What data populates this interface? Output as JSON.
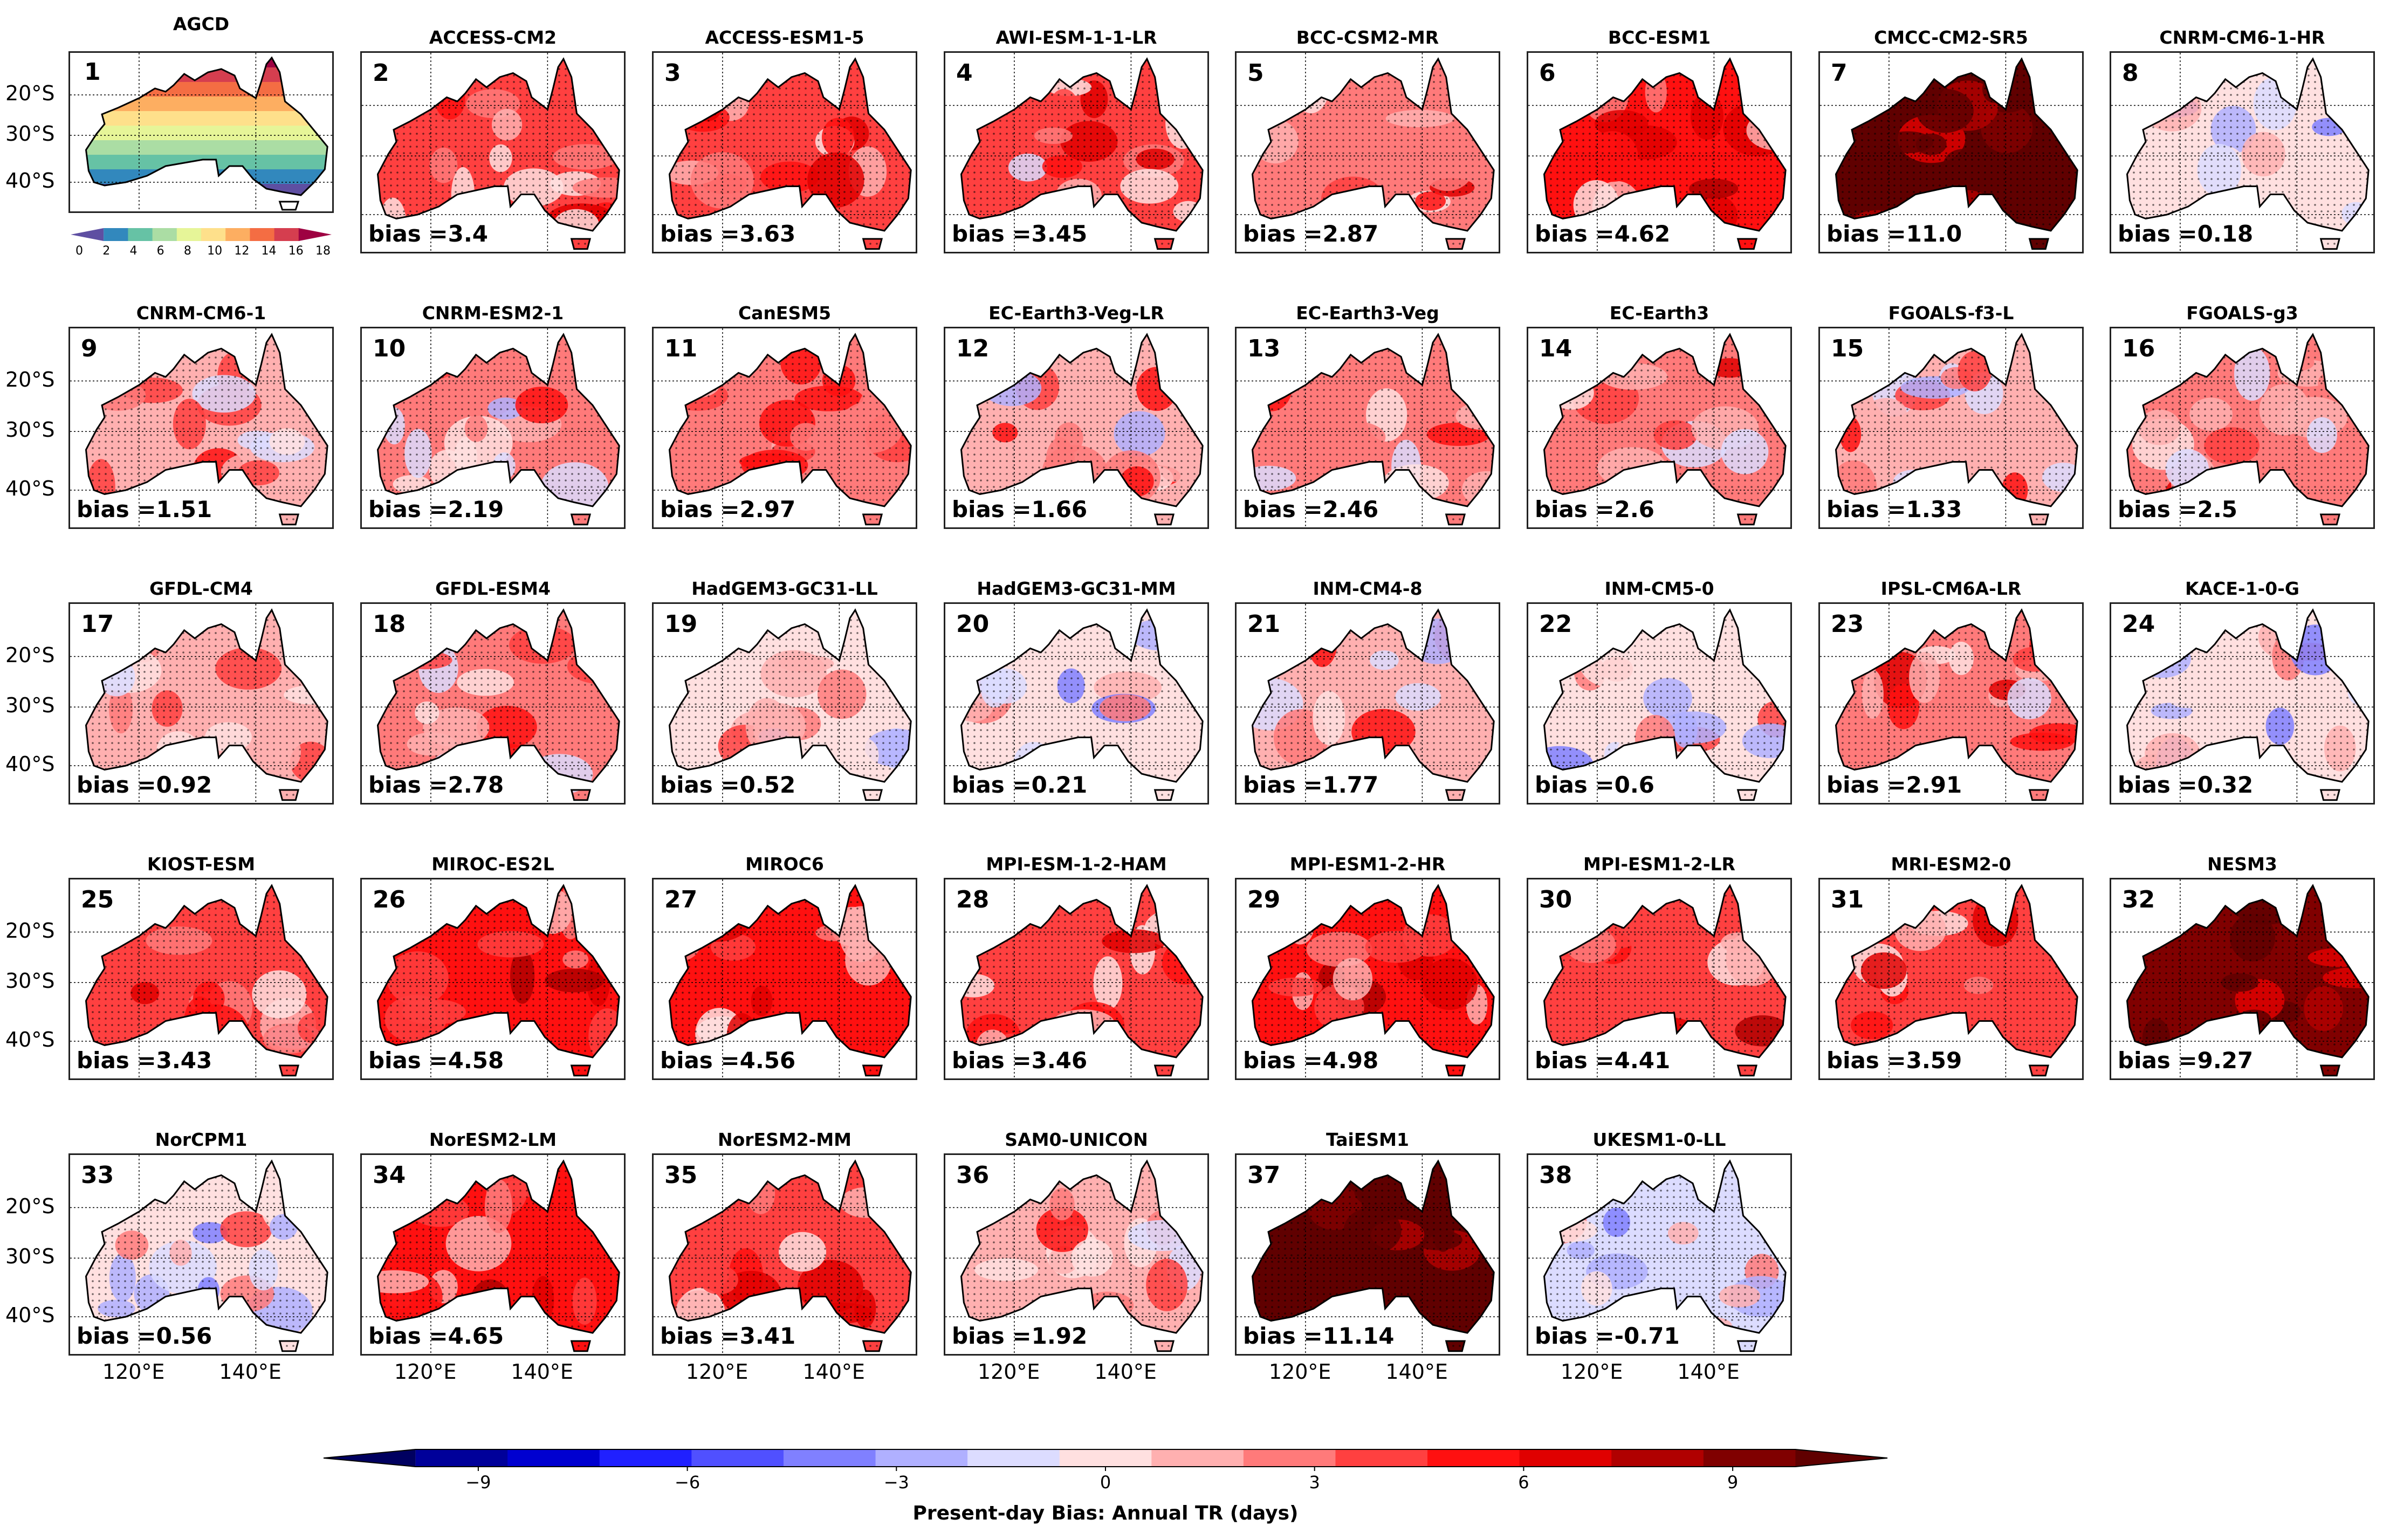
{
  "chart_data": {
    "type": "heatmap",
    "title": "Present-day Bias: Annual TR (days)",
    "description_fields": {
      "reference_dataset": "AGCD"
    },
    "reference_panel": {
      "index": "1",
      "name": "AGCD",
      "colorbar_ticks": [
        "0",
        "2",
        "4",
        "6",
        "8",
        "10",
        "12",
        "14",
        "16",
        "18"
      ],
      "colorbar_range": [
        0,
        18
      ]
    },
    "panels": [
      {
        "index": "2",
        "name": "ACCESS-CM2",
        "bias_label": "bias =3.4",
        "bias": 3.4
      },
      {
        "index": "3",
        "name": "ACCESS-ESM1-5",
        "bias_label": "bias =3.63",
        "bias": 3.63
      },
      {
        "index": "4",
        "name": "AWI-ESM-1-1-LR",
        "bias_label": "bias =3.45",
        "bias": 3.45
      },
      {
        "index": "5",
        "name": "BCC-CSM2-MR",
        "bias_label": "bias =2.87",
        "bias": 2.87
      },
      {
        "index": "6",
        "name": "BCC-ESM1",
        "bias_label": "bias =4.62",
        "bias": 4.62
      },
      {
        "index": "7",
        "name": "CMCC-CM2-SR5",
        "bias_label": "bias =11.0",
        "bias": 11.0
      },
      {
        "index": "8",
        "name": "CNRM-CM6-1-HR",
        "bias_label": "bias =0.18",
        "bias": 0.18
      },
      {
        "index": "9",
        "name": "CNRM-CM6-1",
        "bias_label": "bias =1.51",
        "bias": 1.51
      },
      {
        "index": "10",
        "name": "CNRM-ESM2-1",
        "bias_label": "bias =2.19",
        "bias": 2.19
      },
      {
        "index": "11",
        "name": "CanESM5",
        "bias_label": "bias =2.97",
        "bias": 2.97
      },
      {
        "index": "12",
        "name": "EC-Earth3-Veg-LR",
        "bias_label": "bias =1.66",
        "bias": 1.66
      },
      {
        "index": "13",
        "name": "EC-Earth3-Veg",
        "bias_label": "bias =2.46",
        "bias": 2.46
      },
      {
        "index": "14",
        "name": "EC-Earth3",
        "bias_label": "bias =2.6",
        "bias": 2.6
      },
      {
        "index": "15",
        "name": "FGOALS-f3-L",
        "bias_label": "bias =1.33",
        "bias": 1.33
      },
      {
        "index": "16",
        "name": "FGOALS-g3",
        "bias_label": "bias =2.5",
        "bias": 2.5
      },
      {
        "index": "17",
        "name": "GFDL-CM4",
        "bias_label": "bias =0.92",
        "bias": 0.92
      },
      {
        "index": "18",
        "name": "GFDL-ESM4",
        "bias_label": "bias =2.78",
        "bias": 2.78
      },
      {
        "index": "19",
        "name": "HadGEM3-GC31-LL",
        "bias_label": "bias =0.52",
        "bias": 0.52
      },
      {
        "index": "20",
        "name": "HadGEM3-GC31-MM",
        "bias_label": "bias =0.21",
        "bias": 0.21
      },
      {
        "index": "21",
        "name": "INM-CM4-8",
        "bias_label": "bias =1.77",
        "bias": 1.77
      },
      {
        "index": "22",
        "name": "INM-CM5-0",
        "bias_label": "bias =0.6",
        "bias": 0.6
      },
      {
        "index": "23",
        "name": "IPSL-CM6A-LR",
        "bias_label": "bias =2.91",
        "bias": 2.91
      },
      {
        "index": "24",
        "name": "KACE-1-0-G",
        "bias_label": "bias =0.32",
        "bias": 0.32
      },
      {
        "index": "25",
        "name": "KIOST-ESM",
        "bias_label": "bias =3.43",
        "bias": 3.43
      },
      {
        "index": "26",
        "name": "MIROC-ES2L",
        "bias_label": "bias =4.58",
        "bias": 4.58
      },
      {
        "index": "27",
        "name": "MIROC6",
        "bias_label": "bias =4.56",
        "bias": 4.56
      },
      {
        "index": "28",
        "name": "MPI-ESM-1-2-HAM",
        "bias_label": "bias =3.46",
        "bias": 3.46
      },
      {
        "index": "29",
        "name": "MPI-ESM1-2-HR",
        "bias_label": "bias =4.98",
        "bias": 4.98
      },
      {
        "index": "30",
        "name": "MPI-ESM1-2-LR",
        "bias_label": "bias =4.41",
        "bias": 4.41
      },
      {
        "index": "31",
        "name": "MRI-ESM2-0",
        "bias_label": "bias =3.59",
        "bias": 3.59
      },
      {
        "index": "32",
        "name": "NESM3",
        "bias_label": "bias =9.27",
        "bias": 9.27
      },
      {
        "index": "33",
        "name": "NorCPM1",
        "bias_label": "bias =0.56",
        "bias": 0.56
      },
      {
        "index": "34",
        "name": "NorESM2-LM",
        "bias_label": "bias =4.65",
        "bias": 4.65
      },
      {
        "index": "35",
        "name": "NorESM2-MM",
        "bias_label": "bias =3.41",
        "bias": 3.41
      },
      {
        "index": "36",
        "name": "SAM0-UNICON",
        "bias_label": "bias =1.92",
        "bias": 1.92
      },
      {
        "index": "37",
        "name": "TaiESM1",
        "bias_label": "bias =11.14",
        "bias": 11.14
      },
      {
        "index": "38",
        "name": "UKESM1-0-LL",
        "bias_label": "bias =-0.71",
        "bias": -0.71
      }
    ],
    "lat_labels": [
      "20°S",
      "30°S",
      "40°S"
    ],
    "lon_labels": [
      "120°E",
      "140°E"
    ],
    "colorbar": {
      "ticks": [
        "−9",
        "−6",
        "−3",
        "0",
        "3",
        "6",
        "9"
      ],
      "tick_values": [
        -9,
        -6,
        -3,
        0,
        3,
        6,
        9
      ],
      "range": [
        -11,
        11
      ],
      "label": "Present-day Bias: Annual TR (days)",
      "extend": "both"
    }
  },
  "colors": {
    "ref_scale": [
      "#5e4fa2",
      "#3288bd",
      "#66c2a5",
      "#abdda4",
      "#e6f598",
      "#fee08b",
      "#fdae61",
      "#f46d43",
      "#d53e4f",
      "#9e0142"
    ],
    "bias_scale": [
      "#000060",
      "#00009a",
      "#0000d0",
      "#2020ff",
      "#5050ff",
      "#8080ff",
      "#b0b0ff",
      "#dcdcff",
      "#ffe0e0",
      "#ffb0b0",
      "#ff7a7a",
      "#ff4040",
      "#ff1010",
      "#e00000",
      "#b00000",
      "#800000",
      "#600000"
    ]
  }
}
